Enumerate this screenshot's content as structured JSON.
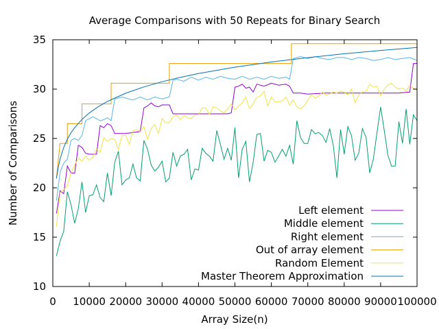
{
  "chart_data": {
    "type": "line",
    "title": "Average Comparisons with 50 Repeats for Binary Search",
    "xlabel": "Array Size(n)",
    "ylabel": "Number of Comparisons",
    "xlim": [
      0,
      100000
    ],
    "ylim": [
      10,
      35
    ],
    "xticks": [
      0,
      10000,
      20000,
      30000,
      40000,
      50000,
      60000,
      70000,
      80000,
      90000,
      100000
    ],
    "yticks": [
      10,
      15,
      20,
      25,
      30,
      35
    ],
    "grid": false,
    "legend_position": "bottom-right",
    "series": [
      {
        "name": "Left element",
        "color": "#9400d3",
        "x": [
          1000,
          2000,
          3000,
          4000,
          5000,
          6000,
          7000,
          8000,
          9000,
          10000,
          12000,
          13000,
          14000,
          15000,
          16000,
          17000,
          20000,
          24000,
          25000,
          26000,
          27000,
          28000,
          29000,
          30000,
          32000,
          33000,
          34000,
          40000,
          48000,
          49000,
          50000,
          51000,
          52000,
          53000,
          54000,
          55000,
          56000,
          58000,
          60000,
          62000,
          64000,
          65000,
          66000,
          68000,
          70000,
          75000,
          80000,
          85000,
          90000,
          95000,
          98000,
          99000,
          100000
        ],
        "values": [
          17.4,
          19.7,
          19.4,
          22.2,
          21.5,
          21.5,
          24.3,
          24.1,
          23.5,
          23.4,
          23.4,
          26.3,
          26.1,
          26.5,
          26.3,
          25.5,
          25.5,
          25.7,
          28.1,
          28.3,
          28.6,
          28.3,
          28.2,
          28.4,
          28.4,
          27.5,
          27.5,
          27.5,
          27.5,
          27.6,
          30.2,
          30.3,
          30.5,
          30.1,
          30.2,
          29.7,
          30.5,
          30.3,
          30.6,
          30.4,
          30.5,
          30.3,
          29.6,
          29.6,
          29.5,
          29.6,
          29.6,
          29.6,
          29.6,
          29.6,
          29.7,
          32.6,
          32.6
        ]
      },
      {
        "name": "Middle element",
        "color": "#009e73",
        "x": [
          1000,
          2000,
          3000,
          4000,
          5000,
          6000,
          7000,
          8000,
          9000,
          10000,
          11000,
          12000,
          13000,
          14000,
          15000,
          16000,
          17000,
          18000,
          19000,
          20000,
          21000,
          22000,
          23000,
          24000,
          25000,
          26000,
          27000,
          28000,
          29000,
          30000,
          31000,
          32000,
          33000,
          34000,
          35000,
          36000,
          37000,
          38000,
          39000,
          40000,
          41000,
          42000,
          43000,
          44000,
          45000,
          46000,
          47000,
          48000,
          49000,
          50000,
          51000,
          52000,
          53000,
          54000,
          55000,
          56000,
          57000,
          58000,
          59000,
          60000,
          61000,
          62000,
          63000,
          64000,
          65000,
          66000,
          67000,
          68000,
          69000,
          70000,
          71000,
          72000,
          73000,
          74000,
          75000,
          76000,
          77000,
          78000,
          79000,
          80000,
          81000,
          82000,
          83000,
          84000,
          85000,
          86000,
          87000,
          88000,
          89000,
          90000,
          91000,
          92000,
          93000,
          94000,
          95000,
          96000,
          97000,
          98000,
          99000,
          100000
        ],
        "values": [
          13.1,
          14.6,
          15.6,
          19.6,
          18.3,
          16.4,
          17.9,
          20.6,
          17.5,
          19.2,
          19.3,
          20.3,
          19.0,
          18.6,
          21.5,
          19.2,
          22.6,
          23.7,
          20.3,
          20.8,
          21.0,
          22.4,
          21.0,
          20.7,
          24.8,
          23.9,
          22.3,
          21.7,
          22.1,
          22.7,
          20.6,
          21.0,
          23.6,
          22.2,
          23.2,
          23.4,
          23.9,
          20.8,
          21.9,
          21.8,
          24.0,
          23.5,
          23.2,
          22.7,
          25.8,
          24.4,
          22.9,
          24.0,
          22.8,
          26.1,
          21.0,
          23.9,
          24.7,
          20.6,
          22.6,
          25.4,
          25.5,
          22.7,
          23.8,
          23.6,
          22.6,
          23.2,
          23.9,
          23.2,
          24.3,
          22.4,
          26.8,
          25.1,
          24.5,
          24.5,
          25.9,
          25.5,
          25.6,
          25.3,
          24.6,
          26.0,
          24.3,
          21.0,
          25.9,
          23.4,
          26.2,
          25.3,
          22.8,
          23.5,
          26.0,
          25.1,
          21.5,
          22.9,
          25.6,
          28.2,
          25.8,
          23.3,
          22.2,
          22.2,
          26.7,
          24.5,
          28.0,
          24.4,
          27.4,
          26.8
        ]
      },
      {
        "name": "Right element",
        "color": "#56b4e9",
        "x": [
          1000,
          2000,
          3000,
          4000,
          5000,
          6000,
          7000,
          8000,
          9000,
          10000,
          11000,
          12000,
          13000,
          14000,
          15000,
          16000,
          17000,
          18000,
          19000,
          20000,
          22000,
          24000,
          26000,
          28000,
          30000,
          32000,
          33000,
          34000,
          36000,
          38000,
          40000,
          42000,
          44000,
          46000,
          48000,
          50000,
          52000,
          54000,
          56000,
          58000,
          60000,
          62000,
          64000,
          65000,
          66000,
          68000,
          70000,
          72000,
          74000,
          76000,
          78000,
          80000,
          82000,
          84000,
          86000,
          88000,
          90000,
          92000,
          94000,
          96000,
          98000,
          100000
        ],
        "values": [
          18.7,
          21.6,
          22.5,
          22.9,
          24.8,
          25.0,
          24.8,
          25.3,
          26.8,
          27.0,
          27.2,
          27.0,
          26.8,
          26.9,
          27.1,
          26.8,
          29.0,
          29.1,
          29.2,
          29.1,
          28.9,
          29.2,
          28.9,
          29.2,
          29.0,
          29.2,
          30.9,
          31.0,
          30.8,
          31.2,
          30.9,
          31.2,
          31.0,
          31.3,
          31.1,
          31.0,
          31.3,
          31.0,
          31.2,
          31.0,
          31.3,
          31.1,
          31.2,
          31.0,
          33.1,
          33.3,
          33.1,
          33.3,
          33.1,
          33.0,
          33.2,
          33.2,
          33.0,
          33.2,
          33.1,
          32.9,
          33.0,
          33.2,
          33.0,
          33.1,
          33.2,
          32.9
        ]
      },
      {
        "name": "Out of array element",
        "color": "#e69f00",
        "x": [
          1000,
          2000,
          4000,
          4001,
          8000,
          8001,
          16000,
          16001,
          32000,
          32001,
          65500,
          65501,
          100000
        ],
        "values": [
          21.0,
          24.5,
          24.5,
          26.5,
          26.5,
          28.5,
          28.5,
          30.6,
          30.6,
          32.6,
          32.6,
          34.6,
          34.6
        ]
      },
      {
        "name": "Random Element",
        "color": "#f0e442",
        "x": [
          1000,
          2000,
          3000,
          4000,
          5000,
          6000,
          7000,
          8000,
          9000,
          10000,
          11000,
          12000,
          13000,
          14000,
          15000,
          16000,
          17000,
          18000,
          19000,
          20000,
          21000,
          22000,
          23000,
          24000,
          25000,
          26000,
          27000,
          28000,
          29000,
          30000,
          31000,
          32000,
          33000,
          34000,
          35000,
          36000,
          37000,
          38000,
          39000,
          40000,
          41000,
          42000,
          43000,
          44000,
          45000,
          46000,
          47000,
          48000,
          49000,
          50000,
          51000,
          52000,
          53000,
          54000,
          55000,
          56000,
          57000,
          58000,
          59000,
          60000,
          61000,
          62000,
          63000,
          64000,
          65000,
          66000,
          67000,
          68000,
          69000,
          70000,
          71000,
          72000,
          73000,
          74000,
          75000,
          76000,
          77000,
          78000,
          79000,
          80000,
          81000,
          82000,
          83000,
          84000,
          85000,
          86000,
          87000,
          88000,
          89000,
          90000,
          91000,
          92000,
          93000,
          94000,
          95000,
          96000,
          97000,
          98000,
          99000,
          100000
        ],
        "values": [
          16.1,
          19.5,
          19.8,
          20.2,
          21.5,
          22.3,
          23.0,
          22.7,
          23.2,
          22.8,
          23.1,
          23.9,
          23.6,
          25.1,
          24.7,
          25.0,
          24.9,
          23.9,
          25.3,
          25.3,
          24.4,
          25.8,
          25.9,
          25.7,
          26.2,
          24.9,
          26.0,
          26.4,
          25.5,
          27.0,
          26.6,
          26.6,
          27.2,
          27.4,
          26.9,
          27.3,
          27.1,
          27.0,
          27.4,
          27.4,
          28.1,
          28.1,
          27.4,
          28.2,
          28.1,
          27.8,
          27.6,
          28.0,
          28.5,
          27.9,
          28.3,
          28.6,
          29.2,
          28.0,
          28.5,
          29.2,
          29.3,
          29.8,
          28.3,
          29.2,
          28.7,
          28.7,
          28.8,
          29.2,
          28.4,
          28.9,
          28.2,
          28.0,
          28.3,
          28.9,
          29.4,
          29.1,
          29.3,
          29.7,
          29.4,
          29.5,
          29.7,
          29.6,
          29.8,
          29.7,
          29.4,
          30.0,
          28.6,
          29.4,
          29.7,
          29.8,
          30.5,
          30.2,
          30.3,
          29.3,
          30.0,
          30.4,
          30.6,
          30.2,
          30.0,
          30.1,
          29.8,
          30.4,
          30.1,
          29.9
        ]
      },
      {
        "name": "Master Theorem Approximation",
        "color": "#0072b2",
        "function": "2*log2(n)+1",
        "x": [
          1000,
          1500,
          2000,
          3000,
          4000,
          5000,
          6000,
          8000,
          10000,
          12500,
          15000,
          20000,
          25000,
          30000,
          35000,
          40000,
          50000,
          60000,
          70000,
          80000,
          90000,
          100000
        ],
        "values": [
          20.93,
          22.1,
          22.93,
          24.1,
          24.93,
          25.58,
          26.1,
          26.93,
          27.58,
          28.22,
          28.75,
          29.58,
          30.22,
          30.75,
          31.19,
          31.58,
          32.22,
          32.75,
          33.19,
          33.58,
          33.92,
          34.22
        ]
      }
    ]
  }
}
